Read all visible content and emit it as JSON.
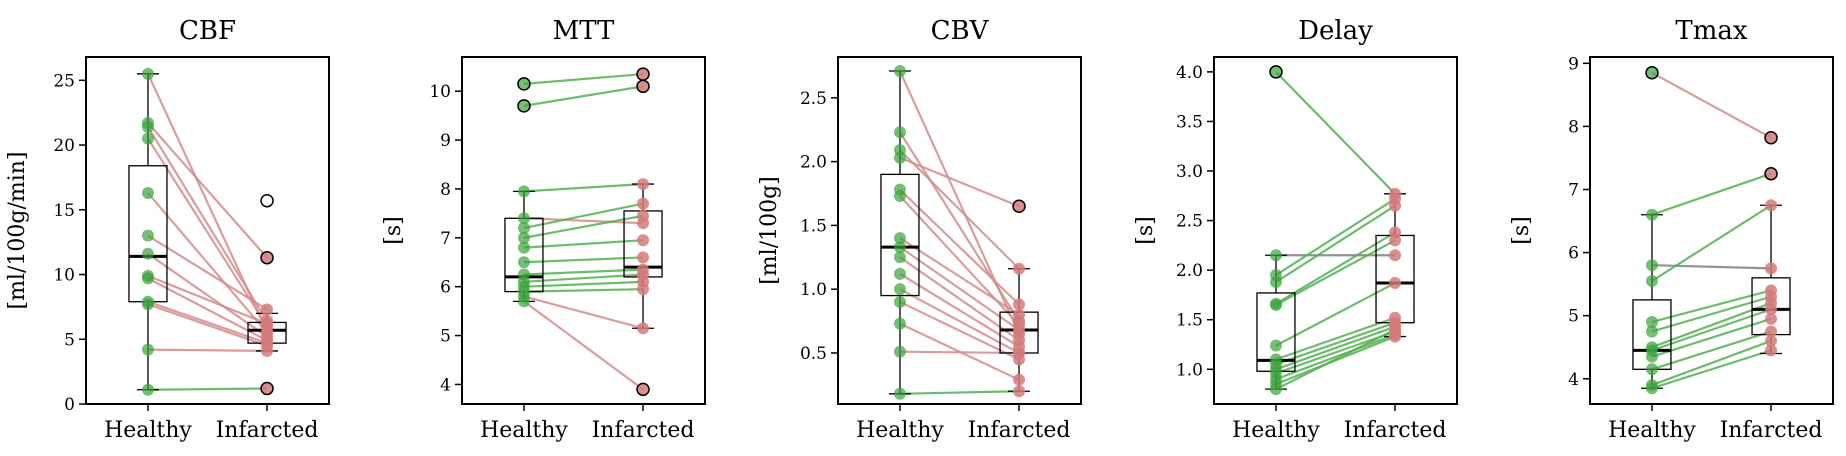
{
  "chart_data": [
    {
      "type": "box-paired",
      "title": "CBF",
      "ylabel": "[ml/100g/min]",
      "categories": [
        "Healthy",
        "Infarcted"
      ],
      "ylim": [
        0,
        26.8
      ],
      "yticks": [
        0,
        5,
        10,
        15,
        20,
        25
      ],
      "tick_labels": [
        "0",
        "5",
        "10",
        "15",
        "20",
        "25"
      ],
      "boxes": [
        {
          "whisker_low": 1.1,
          "q1": 7.9,
          "median": 11.4,
          "q3": 18.4,
          "whisker_high": 25.5
        },
        {
          "whisker_low": 4.1,
          "q1": 4.7,
          "median": 5.7,
          "q3": 6.3,
          "whisker_high": 7.0
        }
      ],
      "pairs": [
        {
          "healthy": 25.5,
          "infarcted": 5.6,
          "direction": "decrease"
        },
        {
          "healthy": 21.7,
          "infarcted": 11.3,
          "direction": "decrease"
        },
        {
          "healthy": 21.4,
          "infarcted": 6.4,
          "direction": "decrease"
        },
        {
          "healthy": 20.5,
          "infarcted": 6.0,
          "direction": "decrease"
        },
        {
          "healthy": 16.3,
          "infarcted": 5.5,
          "direction": "decrease"
        },
        {
          "healthy": 13.0,
          "infarcted": 7.3,
          "direction": "decrease"
        },
        {
          "healthy": 11.6,
          "infarcted": 5.2,
          "direction": "decrease"
        },
        {
          "healthy": 9.9,
          "infarcted": 6.2,
          "direction": "decrease"
        },
        {
          "healthy": 9.7,
          "infarcted": 4.9,
          "direction": "decrease"
        },
        {
          "healthy": 7.9,
          "infarcted": 4.7,
          "direction": "decrease"
        },
        {
          "healthy": 7.7,
          "infarcted": 4.5,
          "direction": "decrease"
        },
        {
          "healthy": 4.2,
          "infarcted": 4.1,
          "direction": "decrease"
        },
        {
          "healthy": 1.1,
          "infarcted": 1.2,
          "direction": "increase"
        }
      ],
      "outliers": [
        {
          "group": "Infarcted",
          "value": 15.7
        },
        {
          "group": "Infarcted",
          "value": 11.3
        },
        {
          "group": "Infarcted",
          "value": 1.2
        }
      ]
    },
    {
      "type": "box-paired",
      "title": "MTT",
      "ylabel": "[s]",
      "categories": [
        "Healthy",
        "Infarcted"
      ],
      "ylim": [
        3.6,
        10.7
      ],
      "yticks": [
        4,
        5,
        6,
        7,
        8,
        9,
        10
      ],
      "tick_labels": [
        "4",
        "5",
        "6",
        "7",
        "8",
        "9",
        "10"
      ],
      "boxes": [
        {
          "whisker_low": 5.7,
          "q1": 5.9,
          "median": 6.2,
          "q3": 7.4,
          "whisker_high": 7.95
        },
        {
          "whisker_low": 5.15,
          "q1": 6.2,
          "median": 6.4,
          "q3": 7.55,
          "whisker_high": 8.1
        }
      ],
      "pairs": [
        {
          "healthy": 10.15,
          "infarcted": 10.35,
          "direction": "increase"
        },
        {
          "healthy": 9.7,
          "infarcted": 10.1,
          "direction": "increase"
        },
        {
          "healthy": 7.95,
          "infarcted": 8.1,
          "direction": "increase"
        },
        {
          "healthy": 7.4,
          "infarcted": 7.3,
          "direction": "decrease"
        },
        {
          "healthy": 7.2,
          "infarcted": 7.7,
          "direction": "increase"
        },
        {
          "healthy": 7.0,
          "infarcted": 7.45,
          "direction": "increase"
        },
        {
          "healthy": 6.8,
          "infarcted": 6.95,
          "direction": "increase"
        },
        {
          "healthy": 6.5,
          "infarcted": 6.6,
          "direction": "increase"
        },
        {
          "healthy": 6.25,
          "infarcted": 6.35,
          "direction": "increase"
        },
        {
          "healthy": 6.1,
          "infarcted": 6.25,
          "direction": "increase"
        },
        {
          "healthy": 6.0,
          "infarcted": 6.1,
          "direction": "increase"
        },
        {
          "healthy": 5.9,
          "infarcted": 5.95,
          "direction": "increase"
        },
        {
          "healthy": 5.8,
          "infarcted": 5.15,
          "direction": "decrease"
        },
        {
          "healthy": 5.7,
          "infarcted": 3.9,
          "direction": "decrease"
        }
      ],
      "outliers": [
        {
          "group": "Healthy",
          "value": 10.15
        },
        {
          "group": "Healthy",
          "value": 9.7
        },
        {
          "group": "Infarcted",
          "value": 10.35
        },
        {
          "group": "Infarcted",
          "value": 10.1
        },
        {
          "group": "Infarcted",
          "value": 3.9
        }
      ]
    },
    {
      "type": "box-paired",
      "title": "CBV",
      "ylabel": "[ml/100g]",
      "categories": [
        "Healthy",
        "Infarcted"
      ],
      "ylim": [
        0.1,
        2.82
      ],
      "yticks": [
        0.5,
        1.0,
        1.5,
        2.0,
        2.5
      ],
      "tick_labels": [
        "0.5",
        "1.0",
        "1.5",
        "2.0",
        "2.5"
      ],
      "boxes": [
        {
          "whisker_low": 0.18,
          "q1": 0.95,
          "median": 1.33,
          "q3": 1.9,
          "whisker_high": 2.71
        },
        {
          "whisker_low": 0.2,
          "q1": 0.5,
          "median": 0.68,
          "q3": 0.82,
          "whisker_high": 1.16
        }
      ],
      "pairs": [
        {
          "healthy": 2.71,
          "infarcted": 0.65,
          "direction": "decrease"
        },
        {
          "healthy": 2.23,
          "infarcted": 0.75,
          "direction": "decrease"
        },
        {
          "healthy": 2.09,
          "infarcted": 1.16,
          "direction": "decrease"
        },
        {
          "healthy": 2.03,
          "infarcted": 1.65,
          "direction": "decrease"
        },
        {
          "healthy": 1.78,
          "infarcted": 0.88,
          "direction": "decrease"
        },
        {
          "healthy": 1.73,
          "infarcted": 0.72,
          "direction": "decrease"
        },
        {
          "healthy": 1.4,
          "infarcted": 0.8,
          "direction": "decrease"
        },
        {
          "healthy": 1.33,
          "infarcted": 0.68,
          "direction": "decrease"
        },
        {
          "healthy": 1.25,
          "infarcted": 0.6,
          "direction": "decrease"
        },
        {
          "healthy": 1.12,
          "infarcted": 0.55,
          "direction": "decrease"
        },
        {
          "healthy": 1.0,
          "infarcted": 0.5,
          "direction": "decrease"
        },
        {
          "healthy": 0.9,
          "infarcted": 0.45,
          "direction": "decrease"
        },
        {
          "healthy": 0.73,
          "infarcted": 0.29,
          "direction": "decrease"
        },
        {
          "healthy": 0.51,
          "infarcted": 0.5,
          "direction": "decrease"
        },
        {
          "healthy": 0.18,
          "infarcted": 0.2,
          "direction": "increase"
        }
      ],
      "outliers": [
        {
          "group": "Infarcted",
          "value": 1.65
        }
      ]
    },
    {
      "type": "box-paired",
      "title": "Delay",
      "ylabel": "[s]",
      "categories": [
        "Healthy",
        "Infarcted"
      ],
      "ylim": [
        0.65,
        4.15
      ],
      "yticks": [
        1.0,
        1.5,
        2.0,
        2.5,
        3.0,
        3.5,
        4.0
      ],
      "tick_labels": [
        "1.0",
        "1.5",
        "2.0",
        "2.5",
        "3.0",
        "3.5",
        "4.0"
      ],
      "boxes": [
        {
          "whisker_low": 0.8,
          "q1": 0.98,
          "median": 1.09,
          "q3": 1.77,
          "whisker_high": 2.15
        },
        {
          "whisker_low": 1.33,
          "q1": 1.47,
          "median": 1.87,
          "q3": 2.35,
          "whisker_high": 2.77
        }
      ],
      "pairs": [
        {
          "healthy": 4.0,
          "infarcted": 2.77,
          "direction": "increase"
        },
        {
          "healthy": 2.15,
          "infarcted": 2.15,
          "direction": "neutral"
        },
        {
          "healthy": 1.95,
          "infarcted": 2.72,
          "direction": "increase"
        },
        {
          "healthy": 1.88,
          "infarcted": 2.65,
          "direction": "increase"
        },
        {
          "healthy": 1.66,
          "infarcted": 2.38,
          "direction": "increase"
        },
        {
          "healthy": 1.65,
          "infarcted": 2.3,
          "direction": "increase"
        },
        {
          "healthy": 1.24,
          "infarcted": 1.87,
          "direction": "increase"
        },
        {
          "healthy": 1.1,
          "infarcted": 1.52,
          "direction": "increase"
        },
        {
          "healthy": 1.05,
          "infarcted": 1.47,
          "direction": "increase"
        },
        {
          "healthy": 1.0,
          "infarcted": 1.43,
          "direction": "increase"
        },
        {
          "healthy": 0.96,
          "infarcted": 1.38,
          "direction": "increase"
        },
        {
          "healthy": 0.9,
          "infarcted": 1.35,
          "direction": "increase"
        },
        {
          "healthy": 0.85,
          "infarcted": 1.33,
          "direction": "increase"
        },
        {
          "healthy": 0.8,
          "infarcted": 1.4,
          "direction": "increase"
        }
      ],
      "outliers": [
        {
          "group": "Healthy",
          "value": 4.0
        }
      ]
    },
    {
      "type": "box-paired",
      "title": "Tmax",
      "ylabel": "[s]",
      "categories": [
        "Healthy",
        "Infarcted"
      ],
      "ylim": [
        3.6,
        9.1
      ],
      "yticks": [
        4,
        5,
        6,
        7,
        8,
        9
      ],
      "tick_labels": [
        "4",
        "5",
        "6",
        "7",
        "8",
        "9"
      ],
      "boxes": [
        {
          "whisker_low": 3.85,
          "q1": 4.15,
          "median": 4.45,
          "q3": 5.25,
          "whisker_high": 6.6
        },
        {
          "whisker_low": 4.4,
          "q1": 4.7,
          "median": 5.1,
          "q3": 5.6,
          "whisker_high": 6.75
        }
      ],
      "pairs": [
        {
          "healthy": 8.85,
          "infarcted": 7.82,
          "direction": "decrease"
        },
        {
          "healthy": 6.6,
          "infarcted": 7.25,
          "direction": "increase"
        },
        {
          "healthy": 5.8,
          "infarcted": 5.75,
          "direction": "neutral"
        },
        {
          "healthy": 5.55,
          "infarcted": 6.75,
          "direction": "increase"
        },
        {
          "healthy": 4.9,
          "infarcted": 5.4,
          "direction": "increase"
        },
        {
          "healthy": 4.75,
          "infarcted": 5.3,
          "direction": "increase"
        },
        {
          "healthy": 4.5,
          "infarcted": 5.2,
          "direction": "increase"
        },
        {
          "healthy": 4.45,
          "infarcted": 5.1,
          "direction": "increase"
        },
        {
          "healthy": 4.35,
          "infarcted": 4.95,
          "direction": "increase"
        },
        {
          "healthy": 4.15,
          "infarcted": 4.75,
          "direction": "increase"
        },
        {
          "healthy": 3.9,
          "infarcted": 4.6,
          "direction": "increase"
        },
        {
          "healthy": 3.85,
          "infarcted": 4.45,
          "direction": "increase"
        }
      ],
      "outliers": [
        {
          "group": "Healthy",
          "value": 8.85
        },
        {
          "group": "Infarcted",
          "value": 7.82
        },
        {
          "group": "Infarcted",
          "value": 7.25
        }
      ]
    }
  ],
  "colors": {
    "healthy_point": "#3aa33a",
    "infarcted_point": "#d47a7a",
    "line_increase": "#52b052",
    "line_decrease": "#d38c8c",
    "line_neutral": "#7f7f7f",
    "box_edge": "#000000",
    "median": "#000000",
    "outlier_edge": "#000000"
  }
}
